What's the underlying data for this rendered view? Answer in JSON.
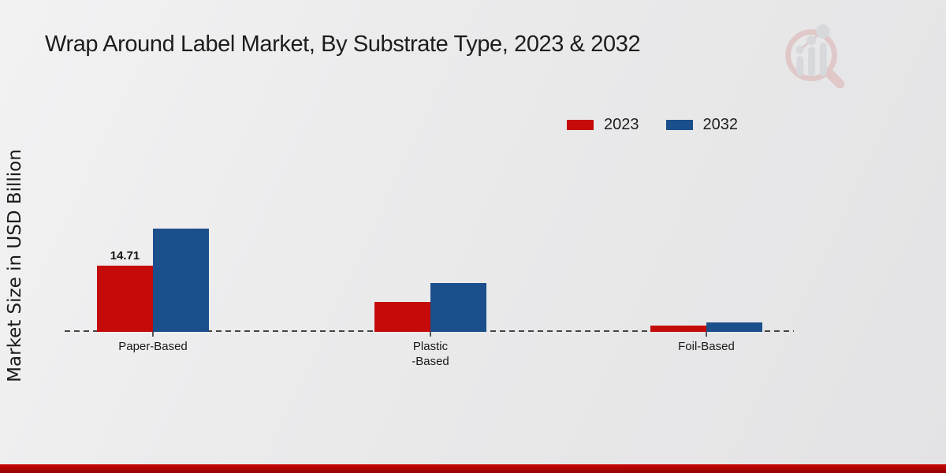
{
  "page": {
    "title": "Wrap Around Label Market, By Substrate Type, 2023 & 2032",
    "ylabel": "Market Size in USD Billion"
  },
  "legend": {
    "items": [
      {
        "label": "2023",
        "color": "#c50a0a"
      },
      {
        "label": "2032",
        "color": "#1b4f8b"
      }
    ]
  },
  "chart_data": {
    "type": "bar",
    "title": "Wrap Around Label Market, By Substrate Type, 2023 & 2032",
    "xlabel": "",
    "ylabel": "Market Size in USD Billion",
    "categories": [
      "Paper-Based",
      "Plastic\n-Based",
      "Foil-Based"
    ],
    "series": [
      {
        "name": "2023",
        "color": "#c50a0a",
        "values": [
          14.71,
          6.6,
          1.4
        ]
      },
      {
        "name": "2032",
        "color": "#1b4f8b",
        "values": [
          23.0,
          10.9,
          2.1
        ]
      }
    ],
    "annotations": [
      {
        "series_index": 0,
        "category_index": 0,
        "text": "14.71"
      }
    ],
    "ylim": [
      0,
      25
    ],
    "grid": false,
    "legend_position": "top-right",
    "baseline_style": "dashed"
  },
  "colors": {
    "bar_2023": "#c50a0a",
    "bar_2032": "#1b4f8b",
    "baseline": "#454545",
    "footer_stripe": "#b30404",
    "text": "#1c1c1c",
    "watermark_ring": "#dcaaaa",
    "watermark_bars": "#c6cad0"
  }
}
